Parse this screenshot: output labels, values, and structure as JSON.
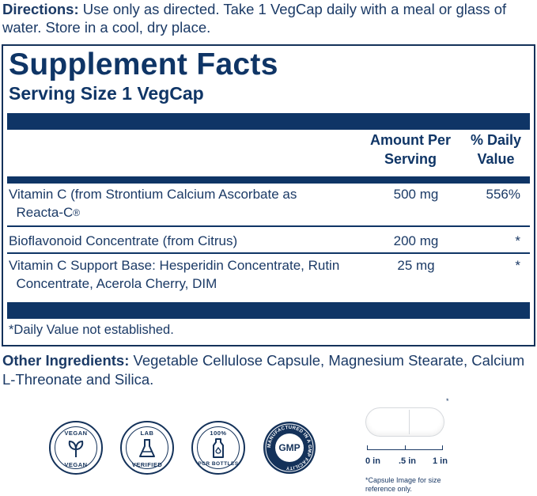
{
  "directions": {
    "label": "Directions:",
    "text": " Use only as directed. Take 1 VegCap daily with a meal or glass of water. Store in a cool, dry place."
  },
  "facts": {
    "title": "Supplement Facts",
    "serving_size": "Serving Size 1 VegCap",
    "col_amount": "Amount Per Serving",
    "col_dv": "% Daily Value",
    "rows": [
      {
        "name": "Vitamin C (from Strontium Calcium Ascorbate as",
        "name2": "Reacta-C",
        "reg": "®",
        "amount": "500 mg",
        "dv": "556%"
      },
      {
        "name": "Bioflavonoid Concentrate (from Citrus)",
        "amount": "200 mg",
        "dv": "*"
      },
      {
        "name": "Vitamin C Support Base: Hesperidin Concentrate, Rutin",
        "name2": "Concentrate, Acerola Cherry, DIM",
        "amount": "25 mg",
        "dv": "*"
      }
    ],
    "footnote": "*Daily Value not established."
  },
  "other": {
    "label": "Other Ingredients:",
    "text": " Vegetable Cellulose Capsule, Magnesium Stearate, Calcium L-Threonate and Silica."
  },
  "badges": {
    "vegan_top": "VEGAN",
    "vegan_bottom": "VEGAN",
    "lab_top": "LAB",
    "lab_bottom": "VERIFIED",
    "pcr_top": "100%",
    "pcr_bottom": "PCR BOTTLES",
    "gmp_center": "GMP",
    "gmp_ring": "MANUFACTURED IN A GMP FACILITY"
  },
  "capsule": {
    "star": "*",
    "scale": [
      "0 in",
      ".5 in",
      "1 in"
    ],
    "note": "*Capsule Image for size reference only."
  }
}
